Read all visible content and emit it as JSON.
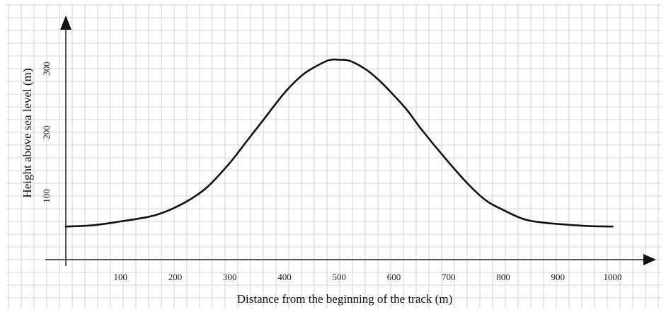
{
  "chart_data": {
    "type": "line",
    "xlabel": "Distance from the beginning of the track (m)",
    "ylabel": "Height above sea level (m)",
    "xlim": [
      0,
      1050
    ],
    "ylim": [
      0,
      350
    ],
    "x_ticks": [
      100,
      200,
      300,
      400,
      500,
      600,
      700,
      800,
      900,
      1000
    ],
    "y_ticks": [
      100,
      200,
      300
    ],
    "grid": true,
    "series": [
      {
        "x": [
          0,
          50,
          100,
          150,
          175,
          200,
          230,
          260,
          300,
          330,
          360,
          400,
          430,
          450,
          480,
          500,
          520,
          550,
          575,
          600,
          625,
          650,
          700,
          740,
          770,
          800,
          830,
          850,
          875,
          900,
          950,
          1000
        ],
        "values": [
          52,
          54,
          60,
          67,
          73,
          82,
          96,
          115,
          152,
          185,
          218,
          262,
          288,
          300,
          313,
          314,
          312,
          298,
          280,
          258,
          234,
          205,
          153,
          115,
          92,
          78,
          66,
          61,
          58,
          56,
          53,
          52
        ]
      }
    ]
  }
}
